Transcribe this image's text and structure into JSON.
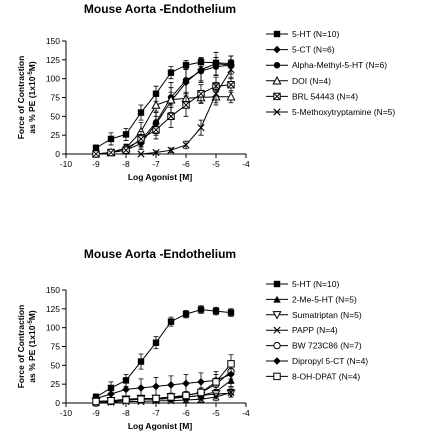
{
  "chart_data": [
    {
      "type": "line",
      "title": "Mouse Aorta -Endothelium",
      "xlabel": "Log Agonist [M]",
      "ylabel_line1": "Force of Contraction",
      "ylabel_line2_pre": "as % PE (1x10",
      "ylabel_sup": "-5",
      "ylabel_line2_post": "M)",
      "xlim": [
        -10,
        -4
      ],
      "ylim": [
        0,
        150
      ],
      "xticks": [
        -10,
        -9,
        -8,
        -7,
        -6,
        -5,
        -4
      ],
      "yticks": [
        0,
        25,
        50,
        75,
        100,
        125,
        150
      ],
      "legend": "right",
      "series": [
        {
          "name": "5-HT (N=10)",
          "marker": "square-filled",
          "x": [
            -9,
            -8.5,
            -8,
            -7.5,
            -7,
            -6.5,
            -6,
            -5.5,
            -5,
            -4.5
          ],
          "y": [
            8,
            20,
            26,
            55,
            80,
            108,
            118,
            122,
            121,
            120
          ],
          "err": [
            4,
            8,
            8,
            10,
            10,
            8,
            6,
            6,
            7,
            5
          ]
        },
        {
          "name": "5-CT (N=6)",
          "marker": "diamond-filled",
          "x": [
            -9,
            -8.5,
            -8,
            -7.5,
            -7,
            -6.5,
            -6,
            -5.5,
            -5,
            -4.5
          ],
          "y": [
            0,
            2,
            5,
            14,
            40,
            70,
            95,
            112,
            120,
            118
          ],
          "err": [
            0,
            2,
            4,
            8,
            15,
            18,
            18,
            15,
            15,
            12
          ]
        },
        {
          "name": "Alpha-Methyl-5-HT (N=6)",
          "marker": "circle-filled",
          "x": [
            -8.5,
            -8,
            -7.5,
            -7,
            -6.5,
            -6,
            -5.5,
            -5,
            -4.5
          ],
          "y": [
            2,
            8,
            18,
            42,
            75,
            98,
            110,
            116,
            118
          ],
          "err": [
            2,
            4,
            10,
            15,
            20,
            18,
            15,
            12,
            12
          ]
        },
        {
          "name": "DOI (N=4)",
          "marker": "triangle-open",
          "x": [
            -8.5,
            -8,
            -7.5,
            -7,
            -6.5,
            -6,
            -5.5,
            -5,
            -4.5
          ],
          "y": [
            2,
            8,
            30,
            65,
            72,
            74,
            75,
            76,
            76
          ],
          "err": [
            2,
            5,
            12,
            15,
            10,
            8,
            8,
            8,
            8
          ]
        },
        {
          "name": "BRL 54443 (N=4)",
          "marker": "box-x",
          "x": [
            -9,
            -8.5,
            -8,
            -7.5,
            -7,
            -6.5,
            -6,
            -5.5,
            -5,
            -4.5
          ],
          "y": [
            0,
            2,
            5,
            20,
            32,
            50,
            65,
            80,
            90,
            92
          ],
          "err": [
            0,
            2,
            4,
            10,
            12,
            15,
            15,
            12,
            12,
            10
          ]
        },
        {
          "name": "5-Methoxytryptamine (N=5)",
          "marker": "x",
          "x": [
            -7.5,
            -7,
            -6.5,
            -6,
            -5.5,
            -5,
            -4.5
          ],
          "y": [
            0,
            2,
            5,
            12,
            35,
            80,
            112
          ],
          "err": [
            0,
            2,
            3,
            5,
            10,
            15,
            12
          ]
        }
      ]
    },
    {
      "type": "line",
      "title": "Mouse Aorta -Endothelium",
      "xlabel": "Log Agonist [M]",
      "ylabel_line1": "Force of Contraction",
      "ylabel_line2_pre": "as % PE (1x10",
      "ylabel_sup": "-5",
      "ylabel_line2_post": "M)",
      "xlim": [
        -10,
        -4
      ],
      "ylim": [
        0,
        150
      ],
      "xticks": [
        -10,
        -9,
        -8,
        -7,
        -6,
        -5,
        -4
      ],
      "yticks": [
        0,
        25,
        50,
        75,
        100,
        125,
        150
      ],
      "legend": "right",
      "series": [
        {
          "name": "5-HT (N=10)",
          "marker": "square-filled",
          "x": [
            -9,
            -8.5,
            -8,
            -7.5,
            -7,
            -6.5,
            -6,
            -5.5,
            -5,
            -4.5
          ],
          "y": [
            8,
            20,
            30,
            55,
            80,
            108,
            118,
            124,
            122,
            120
          ],
          "err": [
            4,
            8,
            8,
            10,
            8,
            6,
            5,
            5,
            5,
            5
          ]
        },
        {
          "name": "2-Me-5-HT (N=5)",
          "marker": "triangle-filled",
          "x": [
            -9,
            -8.5,
            -8,
            -7.5,
            -7,
            -6.5,
            -6,
            -5.5,
            -5,
            -4.5
          ],
          "y": [
            2,
            3,
            4,
            5,
            5,
            6,
            8,
            10,
            15,
            30
          ],
          "err": [
            2,
            3,
            3,
            3,
            3,
            4,
            4,
            5,
            6,
            8
          ]
        },
        {
          "name": "Sumatriptan (N=5)",
          "marker": "triangle-open-down",
          "x": [
            -9,
            -8.5,
            -8,
            -7.5,
            -7,
            -6.5,
            -6,
            -5.5,
            -5,
            -4.5
          ],
          "y": [
            2,
            3,
            5,
            6,
            6,
            8,
            8,
            10,
            12,
            13
          ],
          "err": [
            2,
            3,
            4,
            4,
            4,
            4,
            5,
            5,
            5,
            5
          ]
        },
        {
          "name": "PAPP (N=4)",
          "marker": "x",
          "x": [
            -9,
            -8.5,
            -8,
            -7.5,
            -7,
            -6.5,
            -6,
            -5.5,
            -5,
            -4.5
          ],
          "y": [
            0,
            1,
            2,
            2,
            3,
            3,
            4,
            5,
            8,
            14
          ],
          "err": [
            0,
            1,
            2,
            2,
            3,
            3,
            3,
            4,
            5,
            6
          ]
        },
        {
          "name": "BW 723C86 (N=7)",
          "marker": "circle-open",
          "x": [
            -9,
            -8.5,
            -8,
            -7.5,
            -7,
            -6.5,
            -6,
            -5.5,
            -5,
            -4.5
          ],
          "y": [
            0,
            2,
            4,
            5,
            6,
            8,
            10,
            14,
            25,
            42
          ],
          "err": [
            0,
            2,
            3,
            3,
            4,
            5,
            5,
            6,
            8,
            10
          ]
        },
        {
          "name": "Dipropyl 5-CT (N=4)",
          "marker": "diamond-filled",
          "x": [
            -9,
            -8.5,
            -8,
            -7.5,
            -7,
            -6.5,
            -6,
            -5.5,
            -5,
            -4.5
          ],
          "y": [
            6,
            12,
            18,
            20,
            22,
            24,
            26,
            28,
            30,
            38
          ],
          "err": [
            4,
            6,
            12,
            12,
            12,
            12,
            12,
            12,
            12,
            12
          ]
        },
        {
          "name": "8-OH-DPAT (N=4)",
          "marker": "square-open",
          "x": [
            -9,
            -8.5,
            -8,
            -7.5,
            -7,
            -6.5,
            -6,
            -5.5,
            -5,
            -4.5
          ],
          "y": [
            2,
            3,
            4,
            5,
            6,
            8,
            10,
            14,
            28,
            52
          ],
          "err": [
            2,
            3,
            3,
            3,
            4,
            4,
            5,
            6,
            10,
            12
          ]
        }
      ]
    }
  ]
}
